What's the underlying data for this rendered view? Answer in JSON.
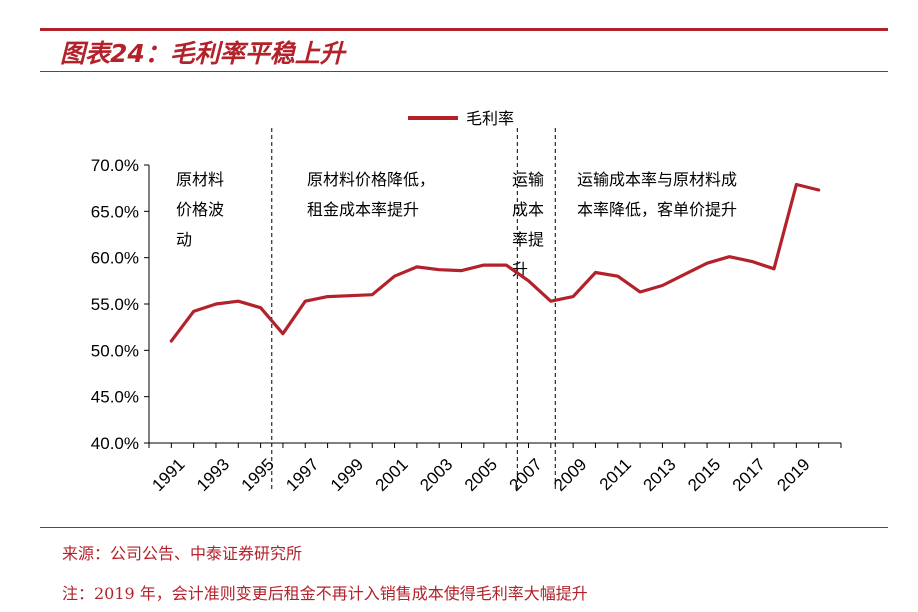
{
  "header": {
    "title": "图表24：毛利率平稳上升"
  },
  "footer": {
    "source": "来源：公司公告、中泰证券研究所",
    "note": "注：2019 年，会计准则变更后租金不再计入销售成本使得毛利率大幅提升"
  },
  "colors": {
    "accent": "#b3222b",
    "line": "#b3222b"
  },
  "chart_data": {
    "type": "line",
    "title": "",
    "xlabel": "",
    "ylabel": "",
    "legend": {
      "position": "top-center",
      "label": "毛利率"
    },
    "grid": false,
    "ylim": [
      40,
      70
    ],
    "yticks": [
      "40.0%",
      "45.0%",
      "50.0%",
      "55.0%",
      "60.0%",
      "65.0%",
      "70.0%"
    ],
    "xticks": [
      "1991",
      "1993",
      "1995",
      "1997",
      "1999",
      "2001",
      "2003",
      "2005",
      "2007",
      "2009",
      "2011",
      "2013",
      "2015",
      "2017",
      "2019"
    ],
    "series": [
      {
        "name": "毛利率",
        "x": [
          1991,
          1992,
          1993,
          1994,
          1995,
          1996,
          1997,
          1998,
          1999,
          2000,
          2001,
          2002,
          2003,
          2004,
          2005,
          2006,
          2007,
          2008,
          2009,
          2010,
          2011,
          2012,
          2013,
          2014,
          2015,
          2016,
          2017,
          2018,
          2019,
          2020
        ],
        "values": [
          51.0,
          54.2,
          55.0,
          55.3,
          54.6,
          51.8,
          55.3,
          55.8,
          55.9,
          56.0,
          58.0,
          59.0,
          58.7,
          58.6,
          59.2,
          59.2,
          57.5,
          55.3,
          55.8,
          58.4,
          58.0,
          56.3,
          57.0,
          58.2,
          59.4,
          60.1,
          59.6,
          58.8,
          67.9,
          67.3
        ]
      }
    ],
    "periods": [
      {
        "boundary_after": 1995.5,
        "label_lines": [
          "原材料",
          "价格波",
          "动"
        ]
      },
      {
        "boundary_after": 2006.5,
        "label_lines": [
          "原材料价格降低，",
          "租金成本率提升"
        ]
      },
      {
        "boundary_after": 2008.2,
        "label_lines": [
          "运输",
          "成本",
          "率提",
          "升"
        ]
      },
      {
        "boundary_after": null,
        "label_lines": [
          "运输成本率与原材料成",
          "本率降低，客单价提升"
        ]
      }
    ]
  }
}
